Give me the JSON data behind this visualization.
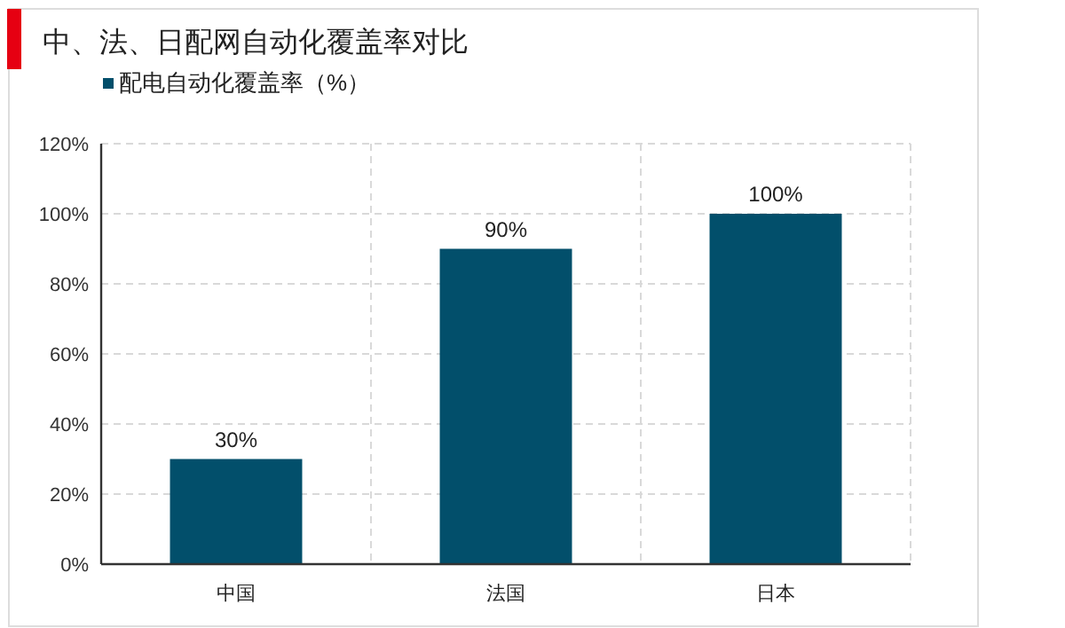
{
  "chart_data": {
    "type": "bar",
    "title": "中、法、日配网自动化覆盖率对比",
    "categories": [
      "中国",
      "法国",
      "日本"
    ],
    "series": [
      {
        "name": "配电自动化覆盖率（%）",
        "color": "#024f6b",
        "values": [
          30,
          90,
          100
        ],
        "value_labels": [
          "30%",
          "90%",
          "100%"
        ]
      }
    ],
    "ylim": [
      0,
      120
    ],
    "yticks": [
      {
        "value": 0,
        "label": "0%"
      },
      {
        "value": 20,
        "label": "20%"
      },
      {
        "value": 40,
        "label": "40%"
      },
      {
        "value": 60,
        "label": "60%"
      },
      {
        "value": 80,
        "label": "80%"
      },
      {
        "value": 100,
        "label": "100%"
      },
      {
        "value": 120,
        "label": "120%"
      }
    ],
    "grid": true,
    "legend": "top left"
  }
}
